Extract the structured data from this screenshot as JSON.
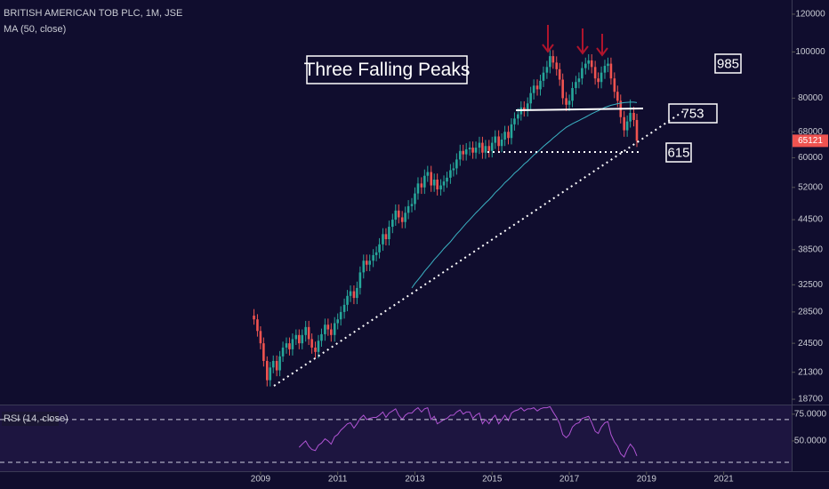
{
  "chart_data": {
    "type": "candlestick",
    "title": "BRITISH AMERICAN TOB PLC, 1M, JSE",
    "log_scale": true,
    "up_color": "#26a69a",
    "down_color": "#ef5350",
    "xlim": [
      2002.25,
      2022.76
    ],
    "xticks": [
      2009,
      2011,
      2013,
      2015,
      2017,
      2019,
      2021
    ],
    "ylim": [
      18230,
      128500
    ],
    "yticks": [
      18700,
      21300,
      24500,
      28500,
      32500,
      38500,
      44500,
      52000,
      60000,
      68000,
      80000,
      100000,
      120000
    ],
    "x": [
      2008.83,
      2008.92,
      2009.0,
      2009.08,
      2009.17,
      2009.25,
      2009.33,
      2009.42,
      2009.5,
      2009.58,
      2009.67,
      2009.75,
      2009.83,
      2009.92,
      2010.0,
      2010.08,
      2010.17,
      2010.25,
      2010.33,
      2010.42,
      2010.5,
      2010.58,
      2010.67,
      2010.75,
      2010.83,
      2010.92,
      2011.0,
      2011.08,
      2011.17,
      2011.25,
      2011.33,
      2011.42,
      2011.5,
      2011.58,
      2011.67,
      2011.75,
      2011.83,
      2011.92,
      2012.0,
      2012.08,
      2012.17,
      2012.25,
      2012.33,
      2012.42,
      2012.5,
      2012.58,
      2012.67,
      2012.75,
      2012.83,
      2012.92,
      2013.0,
      2013.08,
      2013.17,
      2013.25,
      2013.33,
      2013.42,
      2013.5,
      2013.58,
      2013.67,
      2013.75,
      2013.83,
      2013.92,
      2014.0,
      2014.08,
      2014.17,
      2014.25,
      2014.33,
      2014.42,
      2014.5,
      2014.58,
      2014.67,
      2014.75,
      2014.83,
      2014.92,
      2015.0,
      2015.08,
      2015.17,
      2015.25,
      2015.33,
      2015.42,
      2015.5,
      2015.58,
      2015.67,
      2015.75,
      2015.83,
      2015.92,
      2016.0,
      2016.08,
      2016.17,
      2016.25,
      2016.33,
      2016.42,
      2016.5,
      2016.58,
      2016.67,
      2016.75,
      2016.83,
      2016.92,
      2017.0,
      2017.08,
      2017.17,
      2017.25,
      2017.33,
      2017.42,
      2017.5,
      2017.58,
      2017.67,
      2017.75,
      2017.83,
      2017.92,
      2018.0,
      2018.08,
      2018.17,
      2018.25,
      2018.33,
      2018.42,
      2018.5,
      2018.58,
      2018.67,
      2018.75
    ],
    "open": [
      28000,
      27500,
      26000,
      24500,
      22500,
      20500,
      21800,
      22500,
      21500,
      23000,
      24000,
      24500,
      23800,
      25000,
      25500,
      24500,
      25500,
      26500,
      25000,
      24000,
      23500,
      24800,
      25600,
      26800,
      26200,
      25500,
      27000,
      27500,
      28500,
      29500,
      30800,
      31500,
      30500,
      32000,
      34500,
      36500,
      35800,
      36500,
      37500,
      38000,
      39500,
      41500,
      40500,
      43000,
      44500,
      46500,
      45000,
      44000,
      46000,
      47500,
      48000,
      50500,
      53000,
      52000,
      55000,
      56000,
      52500,
      54000,
      51500,
      52500,
      53500,
      54500,
      56500,
      57000,
      59500,
      62000,
      61000,
      62500,
      63000,
      61500,
      63000,
      64500,
      61500,
      63500,
      62000,
      64500,
      66500,
      63500,
      65500,
      68000,
      66000,
      70500,
      72500,
      74000,
      76500,
      75500,
      78000,
      82000,
      85000,
      83500,
      87000,
      90500,
      93000,
      98000,
      95000,
      92000,
      87500,
      80000,
      77500,
      79000,
      84000,
      86500,
      88000,
      92500,
      94500,
      96000,
      93000,
      88000,
      86500,
      90500,
      93500,
      94500,
      88000,
      82500,
      79000,
      73000,
      68500,
      71500,
      74500,
      72000
    ],
    "high": [
      28900,
      28200,
      26600,
      25200,
      23000,
      22400,
      23100,
      23100,
      23600,
      24700,
      25200,
      25200,
      25700,
      26200,
      26200,
      26200,
      27300,
      27300,
      25700,
      24700,
      25500,
      26300,
      27600,
      27600,
      27000,
      27800,
      28300,
      29300,
      30400,
      31700,
      32400,
      32400,
      33000,
      35500,
      37600,
      37600,
      37600,
      38600,
      39100,
      40700,
      42700,
      42700,
      44300,
      45800,
      47900,
      47900,
      46400,
      47400,
      48900,
      49400,
      52000,
      54600,
      54600,
      56700,
      57700,
      57700,
      55600,
      55600,
      54100,
      55100,
      56100,
      58200,
      58700,
      61300,
      63900,
      63900,
      64400,
      64900,
      64900,
      64900,
      66400,
      66400,
      65400,
      65400,
      66400,
      68500,
      68500,
      67500,
      70000,
      70000,
      72600,
      74700,
      76200,
      78800,
      78800,
      80300,
      84500,
      87600,
      87600,
      89600,
      93200,
      95800,
      100900,
      100900,
      97900,
      94800,
      90100,
      82400,
      81400,
      86500,
      89100,
      90600,
      95300,
      97300,
      98900,
      98900,
      95800,
      90600,
      93200,
      96300,
      97300,
      97300,
      90600,
      85000,
      81400,
      75200,
      73600,
      79500,
      76700,
      74200
    ],
    "low": [
      26800,
      25300,
      23800,
      21900,
      19900,
      19900,
      21200,
      20900,
      20900,
      22400,
      23300,
      23100,
      23100,
      24300,
      23800,
      23800,
      24700,
      24300,
      23300,
      22800,
      22800,
      24100,
      24800,
      25400,
      24700,
      24700,
      26200,
      26700,
      27600,
      28600,
      29900,
      29600,
      29600,
      31000,
      33500,
      34700,
      34700,
      35400,
      36400,
      36900,
      38300,
      39300,
      39300,
      41700,
      43200,
      43700,
      42700,
      42700,
      44600,
      46100,
      46600,
      49000,
      50400,
      50400,
      53400,
      50900,
      50900,
      50000,
      50000,
      50900,
      51900,
      52900,
      54800,
      55300,
      57700,
      59200,
      59200,
      60600,
      59700,
      59700,
      61100,
      59700,
      59700,
      60100,
      60100,
      62600,
      61600,
      61600,
      63500,
      64000,
      64000,
      68400,
      70300,
      71800,
      73200,
      73200,
      75700,
      79500,
      81000,
      81000,
      84400,
      87800,
      90200,
      92200,
      89200,
      84900,
      77600,
      75200,
      75200,
      76600,
      81500,
      83900,
      85400,
      89700,
      91700,
      90200,
      85400,
      83900,
      83900,
      87800,
      90700,
      85400,
      80000,
      76600,
      70800,
      66400,
      66400,
      69400,
      69800,
      63200
    ],
    "close": [
      27500,
      26000,
      24500,
      22500,
      20500,
      21800,
      22500,
      21500,
      23000,
      24000,
      24500,
      23800,
      25000,
      25500,
      24500,
      25500,
      26500,
      25000,
      24000,
      23500,
      24800,
      25600,
      26800,
      26200,
      25500,
      27000,
      27500,
      28500,
      29500,
      30800,
      31500,
      30500,
      32000,
      34500,
      36500,
      35800,
      36500,
      37500,
      38000,
      39500,
      41500,
      40500,
      43000,
      44500,
      46500,
      45000,
      44000,
      46000,
      47500,
      48000,
      50500,
      53000,
      52000,
      55000,
      56000,
      52500,
      54000,
      51500,
      52500,
      53500,
      54500,
      56500,
      57000,
      59500,
      62000,
      61000,
      62500,
      63000,
      61500,
      63000,
      64500,
      61500,
      63500,
      62000,
      64500,
      66500,
      63500,
      65500,
      68000,
      66000,
      70500,
      72500,
      74000,
      76500,
      75500,
      78000,
      82000,
      85000,
      83500,
      87000,
      90500,
      93000,
      98000,
      95000,
      92000,
      87500,
      80000,
      77500,
      79000,
      84000,
      86500,
      88000,
      92500,
      94500,
      96000,
      93000,
      88000,
      86500,
      90500,
      93500,
      94500,
      88000,
      82500,
      79000,
      73000,
      68500,
      71500,
      74500,
      72000,
      65121
    ],
    "ma": {
      "name": "MA (50, close)",
      "color": "#3bb3c4",
      "values": [
        null,
        null,
        null,
        null,
        null,
        null,
        null,
        null,
        null,
        null,
        null,
        null,
        null,
        null,
        null,
        null,
        null,
        null,
        null,
        null,
        null,
        null,
        null,
        null,
        null,
        null,
        null,
        null,
        null,
        null,
        null,
        null,
        null,
        null,
        null,
        null,
        null,
        null,
        null,
        null,
        null,
        null,
        null,
        null,
        null,
        null,
        null,
        null,
        null,
        32000,
        32700,
        33300,
        34000,
        34700,
        35300,
        36000,
        36700,
        37300,
        38000,
        38700,
        39300,
        40000,
        40750,
        41500,
        42250,
        43000,
        43750,
        44500,
        45250,
        46000,
        46750,
        47500,
        48250,
        49000,
        49800,
        50700,
        51500,
        52300,
        53200,
        54000,
        54800,
        55700,
        56500,
        57300,
        58200,
        59000,
        59900,
        60800,
        61600,
        62500,
        63400,
        64300,
        65100,
        66000,
        66900,
        67800,
        68600,
        69500,
        70100,
        70700,
        71300,
        71800,
        72400,
        73000,
        73600,
        74200,
        74800,
        75300,
        75900,
        76500,
        76900,
        77300,
        77600,
        77900,
        78100,
        78300,
        78400,
        78500,
        78500,
        78300
      ]
    },
    "rsi": {
      "name": "RSI (14, close)",
      "color": "#b054d3",
      "ylim": [
        21.7,
        84
      ],
      "yticks": [
        {
          "value": 75,
          "label": "75.0000"
        },
        {
          "value": 50,
          "label": "50.0000"
        }
      ],
      "levels": [
        70,
        30
      ],
      "values": [
        null,
        null,
        null,
        null,
        null,
        null,
        null,
        null,
        null,
        null,
        null,
        null,
        null,
        null,
        44,
        47,
        50,
        45,
        42,
        41,
        46,
        48,
        52,
        50,
        47,
        54,
        56,
        60,
        63,
        66,
        67,
        62,
        66,
        71,
        74,
        70,
        71,
        72,
        72,
        74,
        77,
        72,
        76,
        78,
        80,
        74,
        70,
        74,
        76,
        76,
        79,
        81,
        77,
        80,
        81,
        70,
        73,
        66,
        68,
        70,
        71,
        74,
        74,
        77,
        79,
        75,
        77,
        77,
        71,
        74,
        76,
        66,
        70,
        66,
        71,
        74,
        66,
        70,
        74,
        69,
        76,
        78,
        79,
        81,
        78,
        80,
        80,
        81,
        78,
        80,
        81,
        81,
        82,
        77,
        72,
        66,
        56,
        53,
        56,
        63,
        66,
        67,
        71,
        72,
        73,
        67,
        59,
        57,
        63,
        67,
        68,
        56,
        49,
        45,
        38,
        35,
        42,
        47,
        43,
        36
      ]
    },
    "annotations": [
      "Three Falling Peaks",
      "985",
      "753",
      "615"
    ]
  }
}
